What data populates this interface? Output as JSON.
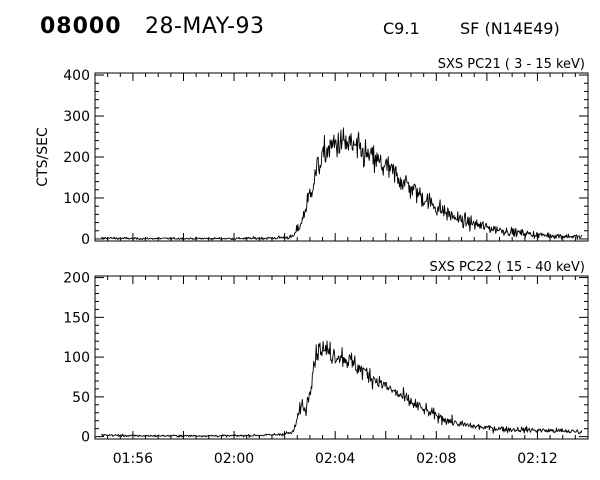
{
  "header": {
    "event_id": "08000",
    "date": "28-MAY-93",
    "goes_class": "C9.1",
    "flare_location": "SF (N14E49)"
  },
  "colors": {
    "trace": "#000000",
    "background": "#ffffff"
  },
  "chart_data": [
    {
      "type": "line",
      "title": "SXS PC21  (  3 - 15 keV)",
      "ylabel": "CTS/SEC",
      "xlabel": "",
      "x_unit": "time (HH:MM)",
      "xlim": [
        "01:54:30",
        "02:14:00"
      ],
      "ylim": [
        -5,
        405
      ],
      "yticks": [
        0,
        100,
        200,
        300,
        400
      ],
      "ytick_labels": [
        "0",
        "100",
        "200",
        "300",
        "400"
      ],
      "grid": false,
      "series": [
        {
          "x": [
            "01:54:45",
            "01:56:00",
            "01:58:00",
            "02:00:00",
            "02:01:30",
            "02:02:20",
            "02:02:40",
            "02:03:00",
            "02:03:20",
            "02:03:40",
            "02:04:00",
            "02:04:20",
            "02:04:40",
            "02:05:00",
            "02:05:30",
            "02:06:00",
            "02:06:30",
            "02:07:00",
            "02:07:30",
            "02:08:00",
            "02:08:30",
            "02:09:00",
            "02:10:00",
            "02:11:00",
            "02:12:00",
            "02:13:00",
            "02:13:45"
          ],
          "values": [
            2,
            1,
            1,
            1,
            2,
            5,
            40,
            110,
            180,
            215,
            232,
            235,
            228,
            212,
            195,
            175,
            150,
            125,
            100,
            78,
            60,
            45,
            28,
            17,
            10,
            7,
            5
          ]
        }
      ]
    },
    {
      "type": "line",
      "title": "SXS PC22  ( 15 - 40 keV)",
      "ylabel": "",
      "xlabel": "",
      "x_unit": "time (HH:MM)",
      "xlim": [
        "01:54:30",
        "02:14:00"
      ],
      "ylim": [
        -3,
        202
      ],
      "yticks": [
        0,
        50,
        100,
        150,
        200
      ],
      "ytick_labels": [
        "0",
        "50",
        "100",
        "150",
        "200"
      ],
      "xtick_labels": [
        "01:56",
        "02:00",
        "02:04",
        "02:08",
        "02:12"
      ],
      "grid": false,
      "series": [
        {
          "x": [
            "01:54:45",
            "01:56:00",
            "01:58:00",
            "02:00:00",
            "02:01:30",
            "02:02:20",
            "02:02:30",
            "02:02:40",
            "02:02:50",
            "02:03:00",
            "02:03:10",
            "02:03:20",
            "02:03:40",
            "02:04:00",
            "02:04:20",
            "02:04:40",
            "02:05:00",
            "02:05:30",
            "02:06:00",
            "02:06:30",
            "02:07:00",
            "02:07:30",
            "02:08:00",
            "02:08:30",
            "02:09:00",
            "02:10:00",
            "02:11:00",
            "02:12:00",
            "02:13:00",
            "02:13:45"
          ],
          "values": [
            2,
            1,
            1,
            1,
            2,
            5,
            22,
            42,
            32,
            60,
            95,
            112,
            108,
            103,
            100,
            93,
            85,
            74,
            63,
            53,
            43,
            34,
            26,
            20,
            15,
            11,
            9,
            8,
            7,
            6
          ]
        }
      ]
    }
  ]
}
